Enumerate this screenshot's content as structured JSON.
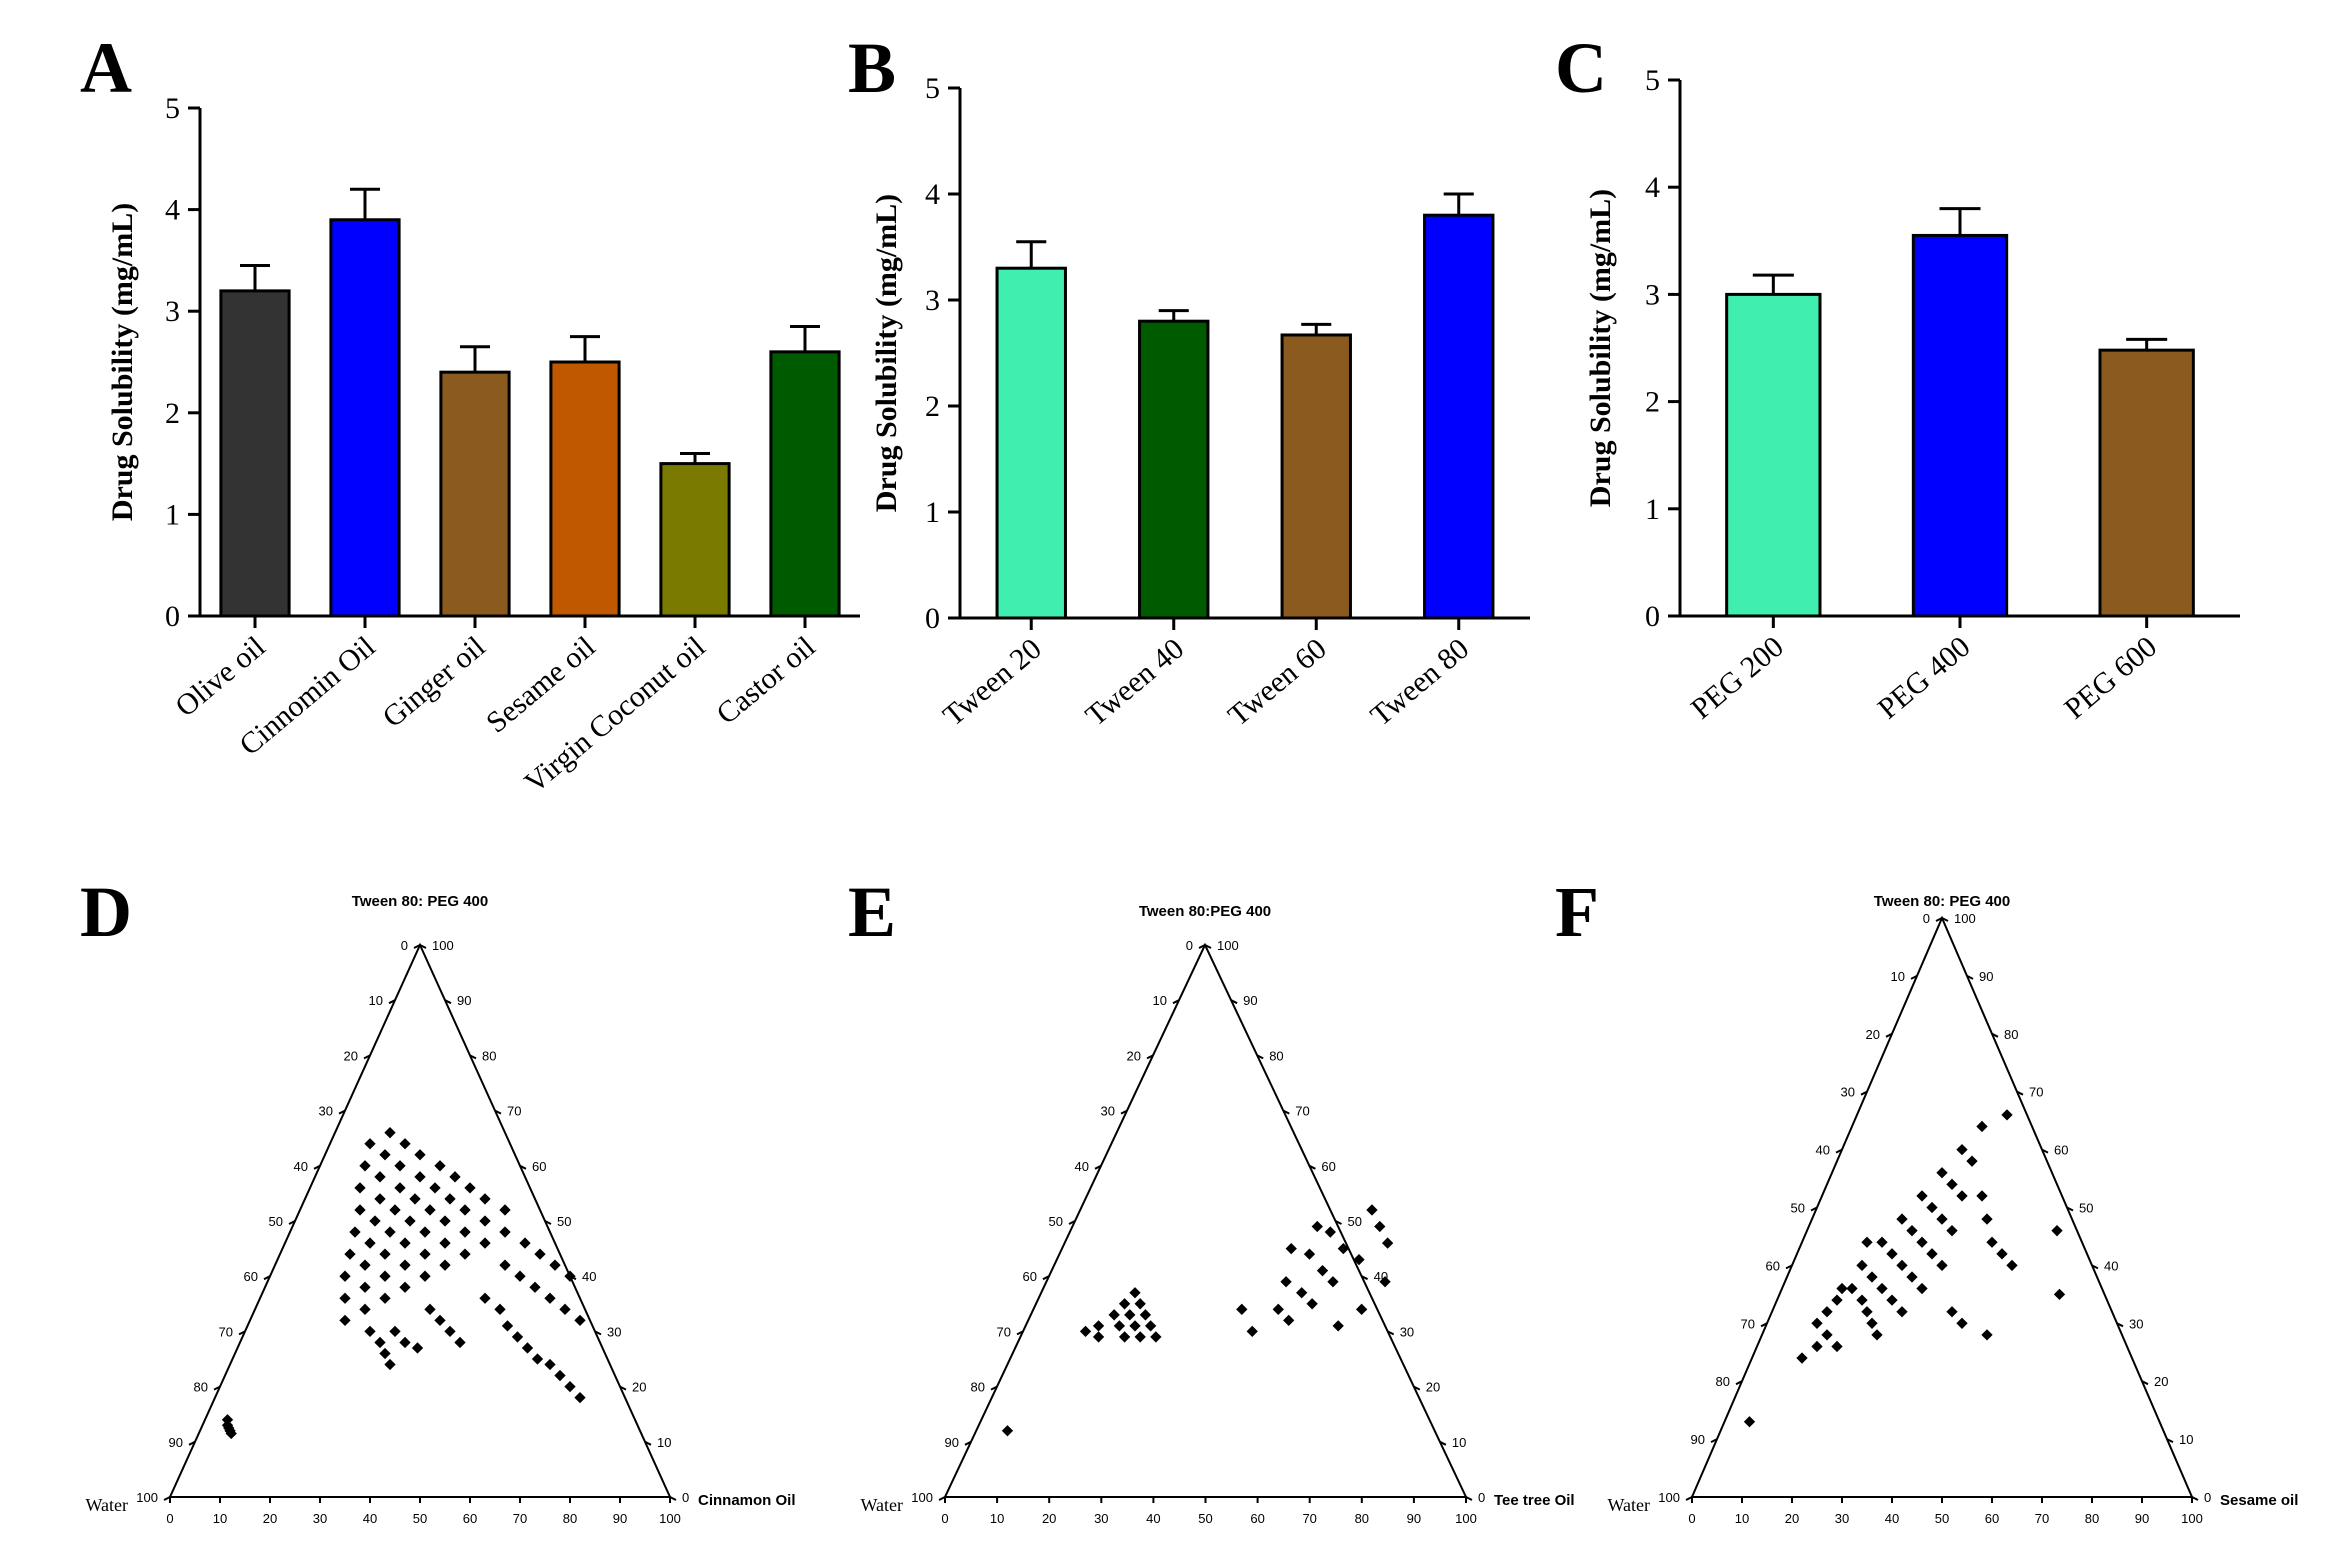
{
  "chart_data": [
    {
      "panel": "A",
      "type": "bar",
      "ylabel": "Drug Solubility (mg/mL)",
      "ylim": [
        0,
        5
      ],
      "yticks": [
        "0",
        "1",
        "2",
        "3",
        "4",
        "5"
      ],
      "categories": [
        "Olive oil",
        "Cinnomin Oil",
        "Ginger oil",
        "Sesame oil",
        "Virgin Coconut oil",
        "Castor oil"
      ],
      "values": [
        3.2,
        3.9,
        2.4,
        2.5,
        1.5,
        2.6
      ],
      "errors": [
        0.25,
        0.3,
        0.25,
        0.25,
        0.1,
        0.25
      ],
      "colors": [
        "#333333",
        "#0000ff",
        "#8b5a1e",
        "#c05800",
        "#7a7a00",
        "#005a00"
      ]
    },
    {
      "panel": "B",
      "type": "bar",
      "ylabel": "Drug Solubility (mg/mL)",
      "ylim": [
        0,
        5
      ],
      "yticks": [
        "0",
        "1",
        "2",
        "3",
        "4",
        "5"
      ],
      "categories": [
        "Tween 20",
        "Tween 40",
        "Tween 60",
        "Tween 80"
      ],
      "values": [
        3.3,
        2.8,
        2.67,
        3.8
      ],
      "errors": [
        0.25,
        0.1,
        0.1,
        0.2
      ],
      "colors": [
        "#40eeb0",
        "#005a00",
        "#8b5a1e",
        "#0000ff"
      ]
    },
    {
      "panel": "C",
      "type": "bar",
      "ylabel": "Drug Solubility (mg/mL)",
      "ylim": [
        0,
        5
      ],
      "yticks": [
        "0",
        "1",
        "2",
        "3",
        "4",
        "5"
      ],
      "categories": [
        "PEG 200",
        "PEG 400",
        "PEG 600"
      ],
      "values": [
        3.0,
        3.55,
        2.48
      ],
      "errors": [
        0.18,
        0.25,
        0.1
      ],
      "colors": [
        "#40eeb0",
        "#0000ff",
        "#8b5a1e"
      ]
    },
    {
      "panel": "D",
      "type": "scatter",
      "subtype": "ternary",
      "top_label": "Tween 80: PEG 400",
      "left_label": "Water",
      "right_label": "Cinnamon Oil",
      "ticks": [
        "0",
        "10",
        "20",
        "30",
        "40",
        "50",
        "60",
        "70",
        "80",
        "90",
        "100"
      ],
      "points": [
        [
          0.05,
          0.13
        ],
        [
          0.055,
          0.125
        ],
        [
          0.06,
          0.12
        ],
        [
          0.065,
          0.115
        ],
        [
          0.045,
          0.14
        ],
        [
          0.25,
          0.3
        ],
        [
          0.28,
          0.28
        ],
        [
          0.3,
          0.26
        ],
        [
          0.32,
          0.24
        ],
        [
          0.3,
          0.3
        ],
        [
          0.33,
          0.28
        ],
        [
          0.36,
          0.27
        ],
        [
          0.35,
          0.34
        ],
        [
          0.38,
          0.32
        ],
        [
          0.41,
          0.3
        ],
        [
          0.44,
          0.28
        ],
        [
          0.45,
          0.36
        ],
        [
          0.49,
          0.34
        ],
        [
          0.52,
          0.31
        ],
        [
          0.55,
          0.29
        ],
        [
          0.58,
          0.27
        ],
        [
          0.61,
          0.25
        ],
        [
          0.64,
          0.24
        ],
        [
          0.67,
          0.22
        ],
        [
          0.7,
          0.2
        ],
        [
          0.73,
          0.18
        ],
        [
          0.19,
          0.32
        ],
        [
          0.22,
          0.34
        ],
        [
          0.25,
          0.36
        ],
        [
          0.28,
          0.38
        ],
        [
          0.31,
          0.4
        ],
        [
          0.34,
          0.42
        ],
        [
          0.37,
          0.44
        ],
        [
          0.4,
          0.46
        ],
        [
          0.43,
          0.48
        ],
        [
          0.17,
          0.36
        ],
        [
          0.2,
          0.38
        ],
        [
          0.23,
          0.4
        ],
        [
          0.26,
          0.42
        ],
        [
          0.29,
          0.44
        ],
        [
          0.32,
          0.46
        ],
        [
          0.35,
          0.48
        ],
        [
          0.38,
          0.5
        ],
        [
          0.41,
          0.52
        ],
        [
          0.15,
          0.4
        ],
        [
          0.18,
          0.42
        ],
        [
          0.21,
          0.44
        ],
        [
          0.24,
          0.46
        ],
        [
          0.27,
          0.48
        ],
        [
          0.3,
          0.5
        ],
        [
          0.33,
          0.52
        ],
        [
          0.36,
          0.54
        ],
        [
          0.14,
          0.44
        ],
        [
          0.17,
          0.46
        ],
        [
          0.2,
          0.48
        ],
        [
          0.23,
          0.5
        ],
        [
          0.26,
          0.52
        ],
        [
          0.29,
          0.54
        ],
        [
          0.32,
          0.56
        ],
        [
          0.13,
          0.48
        ],
        [
          0.16,
          0.5
        ],
        [
          0.19,
          0.52
        ],
        [
          0.22,
          0.54
        ],
        [
          0.25,
          0.56
        ],
        [
          0.28,
          0.58
        ],
        [
          0.12,
          0.52
        ],
        [
          0.15,
          0.54
        ],
        [
          0.18,
          0.56
        ],
        [
          0.21,
          0.58
        ],
        [
          0.24,
          0.6
        ],
        [
          0.1,
          0.56
        ],
        [
          0.13,
          0.58
        ],
        [
          0.16,
          0.6
        ],
        [
          0.19,
          0.62
        ],
        [
          0.09,
          0.6
        ],
        [
          0.12,
          0.62
        ],
        [
          0.15,
          0.64
        ],
        [
          0.08,
          0.64
        ],
        [
          0.11,
          0.66
        ],
        [
          0.46,
          0.42
        ],
        [
          0.5,
          0.4
        ],
        [
          0.54,
          0.38
        ],
        [
          0.58,
          0.36
        ],
        [
          0.62,
          0.34
        ],
        [
          0.66,
          0.32
        ],
        [
          0.48,
          0.46
        ],
        [
          0.52,
          0.44
        ],
        [
          0.56,
          0.42
        ],
        [
          0.6,
          0.4
        ]
      ]
    },
    {
      "panel": "E",
      "type": "scatter",
      "subtype": "ternary",
      "top_label": "Tween 80:PEG 400",
      "left_label": "Water",
      "right_label": "Tee tree Oil",
      "ticks": [
        "0",
        "10",
        "20",
        "30",
        "40",
        "50",
        "60",
        "70",
        "80",
        "90",
        "100"
      ],
      "points": [
        [
          0.06,
          0.12
        ],
        [
          0.12,
          0.3
        ],
        [
          0.14,
          0.31
        ],
        [
          0.15,
          0.29
        ],
        [
          0.16,
          0.33
        ],
        [
          0.18,
          0.31
        ],
        [
          0.2,
          0.29
        ],
        [
          0.17,
          0.35
        ],
        [
          0.19,
          0.33
        ],
        [
          0.21,
          0.31
        ],
        [
          0.23,
          0.29
        ],
        [
          0.18,
          0.37
        ],
        [
          0.2,
          0.35
        ],
        [
          0.22,
          0.33
        ],
        [
          0.24,
          0.31
        ],
        [
          0.26,
          0.29
        ],
        [
          0.4,
          0.34
        ],
        [
          0.44,
          0.3
        ],
        [
          0.47,
          0.34
        ],
        [
          0.5,
          0.32
        ],
        [
          0.46,
          0.39
        ],
        [
          0.5,
          0.37
        ],
        [
          0.53,
          0.35
        ],
        [
          0.48,
          0.44
        ],
        [
          0.52,
          0.41
        ],
        [
          0.55,
          0.39
        ],
        [
          0.5,
          0.48
        ],
        [
          0.54,
          0.45
        ],
        [
          0.58,
          0.43
        ],
        [
          0.6,
          0.31
        ],
        [
          0.63,
          0.34
        ],
        [
          0.56,
          0.52
        ],
        [
          0.59,
          0.49
        ],
        [
          0.62,
          0.46
        ],
        [
          0.44,
          0.45
        ],
        [
          0.47,
          0.49
        ],
        [
          0.65,
          0.39
        ]
      ]
    },
    {
      "panel": "F",
      "type": "scatter",
      "subtype": "ternary",
      "top_label": "Tween 80: PEG 400",
      "left_label": "Water",
      "right_label": "Sesame oil",
      "ticks": [
        "0",
        "10",
        "20",
        "30",
        "40",
        "50",
        "60",
        "70",
        "80",
        "90",
        "100"
      ],
      "points": [
        [
          0.05,
          0.13
        ],
        [
          0.1,
          0.3
        ],
        [
          0.11,
          0.32
        ],
        [
          0.13,
          0.28
        ],
        [
          0.16,
          0.26
        ],
        [
          0.12,
          0.34
        ],
        [
          0.14,
          0.36
        ],
        [
          0.17,
          0.34
        ],
        [
          0.19,
          0.32
        ],
        [
          0.21,
          0.3
        ],
        [
          0.23,
          0.28
        ],
        [
          0.14,
          0.4
        ],
        [
          0.17,
          0.38
        ],
        [
          0.2,
          0.36
        ],
        [
          0.23,
          0.34
        ],
        [
          0.26,
          0.32
        ],
        [
          0.16,
          0.44
        ],
        [
          0.19,
          0.42
        ],
        [
          0.22,
          0.4
        ],
        [
          0.25,
          0.38
        ],
        [
          0.28,
          0.36
        ],
        [
          0.18,
          0.48
        ],
        [
          0.21,
          0.46
        ],
        [
          0.24,
          0.44
        ],
        [
          0.27,
          0.42
        ],
        [
          0.3,
          0.4
        ],
        [
          0.2,
          0.52
        ],
        [
          0.23,
          0.5
        ],
        [
          0.26,
          0.48
        ],
        [
          0.29,
          0.46
        ],
        [
          0.22,
          0.56
        ],
        [
          0.25,
          0.54
        ],
        [
          0.28,
          0.52
        ],
        [
          0.24,
          0.6
        ],
        [
          0.27,
          0.58
        ],
        [
          0.26,
          0.64
        ],
        [
          0.3,
          0.66
        ],
        [
          0.32,
          0.52
        ],
        [
          0.35,
          0.48
        ],
        [
          0.38,
          0.44
        ],
        [
          0.41,
          0.42
        ],
        [
          0.44,
          0.4
        ],
        [
          0.5,
          0.46
        ],
        [
          0.36,
          0.32
        ],
        [
          0.39,
          0.3
        ],
        [
          0.45,
          0.28
        ],
        [
          0.56,
          0.35
        ],
        [
          0.12,
          0.26
        ],
        [
          0.1,
          0.24
        ],
        [
          0.12,
          0.36
        ],
        [
          0.13,
          0.44
        ]
      ]
    }
  ]
}
